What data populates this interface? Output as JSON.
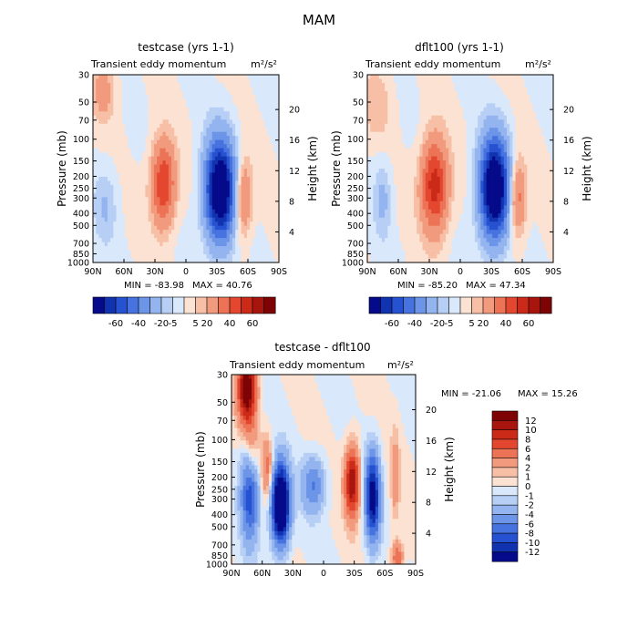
{
  "page_title": "MAM",
  "chart_data": [
    {
      "type": "heatmap",
      "title": "testcase (yrs 1-1)",
      "subtitle": "Transient eddy momentum",
      "units": "m²/s²",
      "ylabel": "Pressure (mb)",
      "ylabel_right": "Height (km)",
      "x_ticks": [
        "90N",
        "60N",
        "30N",
        "0",
        "30S",
        "60S",
        "90S"
      ],
      "y_ticks": [
        "30",
        "50",
        "70",
        "100",
        "150",
        "200",
        "250",
        "300",
        "400",
        "500",
        "700",
        "850",
        "1000"
      ],
      "height_ticks": [
        "20",
        "16",
        "12",
        "8",
        "4"
      ],
      "min_label": "MIN = -83.98",
      "max_label": "MAX =  40.76",
      "min": -83.98,
      "max": 40.76,
      "colorbar_levels": [
        "-60",
        "-40",
        "-20",
        "-5",
        "5",
        "20",
        "40",
        "60"
      ],
      "features": [
        {
          "lat": 22,
          "p": 230,
          "value": 40.76,
          "lat_width": 8,
          "p_width": 0.55
        },
        {
          "lat": -33,
          "p": 260,
          "value": -83.98,
          "lat_width": 10,
          "p_width": 0.65
        },
        {
          "lat": -55,
          "p": 300,
          "value": 25,
          "lat_width": 6,
          "p_width": 0.5
        },
        {
          "lat": 80,
          "p": 40,
          "value": 14,
          "lat_width": 8,
          "p_width": 0.4
        },
        {
          "lat": 78,
          "p": 350,
          "value": -10,
          "lat_width": 8,
          "p_width": 0.5
        }
      ]
    },
    {
      "type": "heatmap",
      "title": "dflt100 (yrs 1-1)",
      "subtitle": "Transient eddy momentum",
      "units": "m²/s²",
      "ylabel": "Pressure (mb)",
      "ylabel_right": "Height (km)",
      "x_ticks": [
        "90N",
        "60N",
        "30N",
        "0",
        "30S",
        "60S",
        "90S"
      ],
      "y_ticks": [
        "30",
        "50",
        "70",
        "100",
        "150",
        "200",
        "250",
        "300",
        "400",
        "500",
        "700",
        "850",
        "1000"
      ],
      "height_ticks": [
        "20",
        "16",
        "12",
        "8",
        "4"
      ],
      "min_label": "MIN = -85.20",
      "max_label": "MAX =  47.34",
      "min": -85.2,
      "max": 47.34,
      "colorbar_levels": [
        "-60",
        "-40",
        "-20",
        "-5",
        "5",
        "20",
        "40",
        "60"
      ],
      "features": [
        {
          "lat": 25,
          "p": 240,
          "value": 47.34,
          "lat_width": 9,
          "p_width": 0.6
        },
        {
          "lat": -33,
          "p": 250,
          "value": -85.2,
          "lat_width": 10,
          "p_width": 0.65
        },
        {
          "lat": -55,
          "p": 300,
          "value": 28,
          "lat_width": 6,
          "p_width": 0.5
        },
        {
          "lat": 75,
          "p": 300,
          "value": -12,
          "lat_width": 6,
          "p_width": 0.5
        },
        {
          "lat": 80,
          "p": 50,
          "value": 8,
          "lat_width": 10,
          "p_width": 0.5
        }
      ]
    },
    {
      "type": "heatmap",
      "title": "testcase - dflt100",
      "subtitle": "Transient eddy momentum",
      "units": "m²/s²",
      "ylabel": "Pressure (mb)",
      "ylabel_right": "Height (km)",
      "x_ticks": [
        "90N",
        "60N",
        "30N",
        "0",
        "30S",
        "60S",
        "90S"
      ],
      "y_ticks": [
        "30",
        "50",
        "70",
        "100",
        "150",
        "200",
        "250",
        "300",
        "400",
        "500",
        "700",
        "850",
        "1000"
      ],
      "height_ticks": [
        "20",
        "16",
        "12",
        "8",
        "4"
      ],
      "min_label": "MIN = -21.06",
      "max_label": "MAX =  15.26",
      "min": -21.06,
      "max": 15.26,
      "colorbar_levels": [
        "12",
        "10",
        "8",
        "6",
        "4",
        "2",
        "1",
        "0",
        "-1",
        "-2",
        "-4",
        "-6",
        "-8",
        "-10",
        "-12"
      ],
      "features": [
        {
          "lat": 75,
          "p": 38,
          "value": 15.26,
          "lat_width": 6,
          "p_width": 0.45
        },
        {
          "lat": 70,
          "p": 120,
          "value": 4,
          "lat_width": 5,
          "p_width": 0.5
        },
        {
          "lat": 42,
          "p": 330,
          "value": -21.06,
          "lat_width": 6,
          "p_width": 0.5
        },
        {
          "lat": 72,
          "p": 270,
          "value": -10,
          "lat_width": 6,
          "p_width": 0.6
        },
        {
          "lat": 10,
          "p": 230,
          "value": -6,
          "lat_width": 8,
          "p_width": 0.35
        },
        {
          "lat": -28,
          "p": 220,
          "value": 12,
          "lat_width": 5,
          "p_width": 0.45
        },
        {
          "lat": -48,
          "p": 290,
          "value": -14,
          "lat_width": 5,
          "p_width": 0.55
        },
        {
          "lat": 55,
          "p": 170,
          "value": 5,
          "lat_width": 4,
          "p_width": 0.4
        },
        {
          "lat": -70,
          "p": 200,
          "value": 3,
          "lat_width": 3,
          "p_width": 0.6
        },
        {
          "lat": -72,
          "p": 880,
          "value": 6,
          "lat_width": 4,
          "p_width": 0.2
        }
      ]
    }
  ],
  "colors": {
    "pos": [
      "#fbe2d3",
      "#f7c0a6",
      "#f29a7d",
      "#ec7356",
      "#e4472f",
      "#cc2a18",
      "#a8150e",
      "#7d0304"
    ],
    "neg": [
      "#d9e8fb",
      "#b7cff5",
      "#93b4ef",
      "#6c95e8",
      "#4673df",
      "#2651d0",
      "#1233b0",
      "#050a8a"
    ]
  }
}
